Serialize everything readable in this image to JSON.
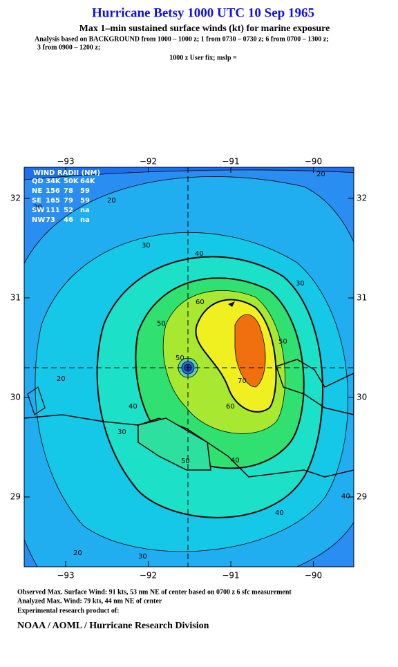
{
  "header": {
    "title": "Hurricane Betsy 1000 UTC 10 Sep 1965",
    "subtitle": "Max 1–min sustained surface winds (kt) for marine exposure",
    "analysis_line1": "Analysis based on  BACKGROUND from 1000 – 1000 z;  1 from 0730 – 0730 z;  6 from 0700 – 1300 z;",
    "analysis_line2": "3 from 0900 – 1200 z;",
    "fix": "1000 z User fix; mslp ="
  },
  "map": {
    "lon_ticks": [
      "−93",
      "−92",
      "−91",
      "−90"
    ],
    "lat_ticks": [
      "32",
      "31",
      "30",
      "29"
    ],
    "contour_labels": [
      "20",
      "20",
      "20",
      "20",
      "20",
      "30",
      "30",
      "30",
      "30",
      "40",
      "40",
      "40",
      "40",
      "40",
      "50",
      "50",
      "50",
      "50",
      "60",
      "60",
      "70"
    ],
    "wind_radii": {
      "title": "WIND RADII (NM)",
      "header": [
        "QD",
        "34K",
        "50K",
        "64K"
      ],
      "rows": [
        [
          "NE",
          "156",
          "78",
          "59"
        ],
        [
          "SE",
          "165",
          "79",
          "59"
        ],
        [
          "SW",
          "111",
          "52",
          "na"
        ],
        [
          "NW",
          "73",
          "46",
          "na"
        ]
      ]
    }
  },
  "footer": {
    "observed": "Observed Max. Surface Wind: 91 kts, 53 nm NE of center based on 0700 z 6 sfc measurement",
    "analyzed": "Analyzed Max. Wind: 79 kts, 44 nm NE of center",
    "experimental": "Experimental research product of:",
    "org": "NOAA / AOML / Hurricane Research Division"
  }
}
